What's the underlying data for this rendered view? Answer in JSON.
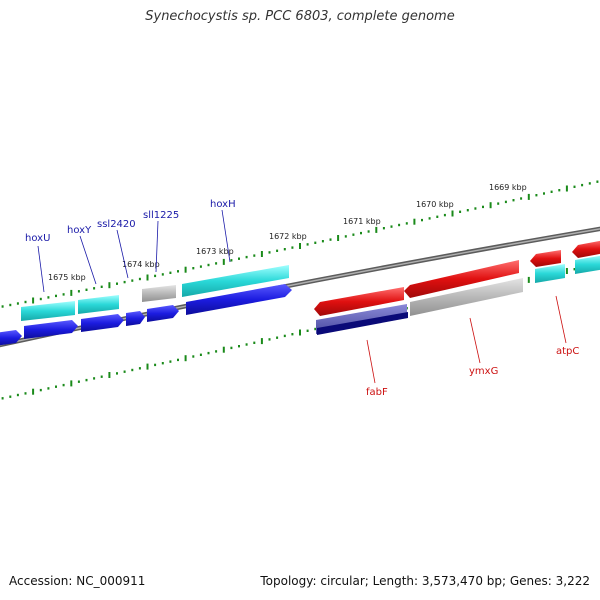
{
  "title": "Synechocystis sp. PCC 6803, complete genome",
  "footer": {
    "accession": "Accession: NC_000911",
    "topology": "Topology: circular; Length: 3,573,470 bp; Genes: 3,222"
  },
  "colors": {
    "forward_cds": "#1c1ce0",
    "forward_gene": "#28d8d8",
    "reverse_cds": "#e01010",
    "pseudo": "#b8b8b8",
    "backbone": "#777777",
    "ticks": "#1a8a1a",
    "forward_label": "#1a1aa8",
    "reverse_label": "#cc1111"
  },
  "ticks": [
    {
      "label": "1675 kbp"
    },
    {
      "label": "1674 kbp"
    },
    {
      "label": "1673 kbp"
    },
    {
      "label": "1672 kbp"
    },
    {
      "label": "1671 kbp"
    },
    {
      "label": "1670 kbp"
    },
    {
      "label": "1669 kbp"
    }
  ],
  "gene_labels": {
    "forward": [
      "hoxU",
      "hoxY",
      "ssl2420",
      "sll1225",
      "hoxH"
    ],
    "reverse": [
      "fabF",
      "ymxG",
      "atpC"
    ]
  }
}
